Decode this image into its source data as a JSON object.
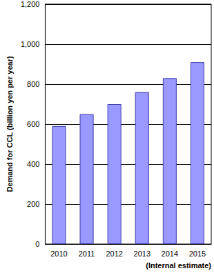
{
  "chart_data": {
    "type": "bar",
    "y_label": "Demand for CCL (billion yen per year)",
    "annotation": "(Internal estimate)",
    "categories": [
      "2010",
      "2011",
      "2012",
      "2013",
      "2014",
      "2015"
    ],
    "values": [
      590,
      650,
      700,
      760,
      830,
      910
    ],
    "color": "#9999ff",
    "ylim": [
      0,
      1200
    ],
    "yticks": [
      0,
      200,
      400,
      600,
      800,
      {
        "value": 1000,
        "label": "1,000"
      },
      {
        "value": 1200,
        "label": "1,200"
      }
    ],
    "grid": true
  }
}
